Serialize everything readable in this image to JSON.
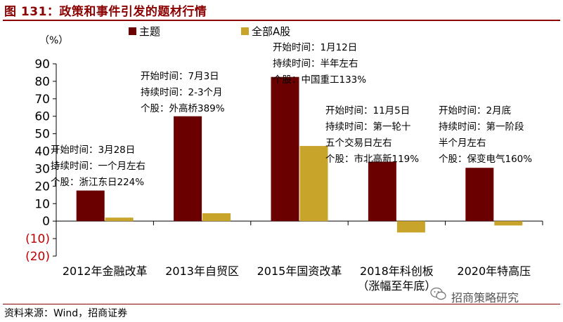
{
  "figure_title": "图 131：政策和事件引发的题材行情",
  "source_note": "资料来源：Wind，招商证券",
  "watermark": "招商策略研究",
  "colors": {
    "theme": "#6B0000",
    "market": "#C8A42A",
    "negative_tick": "#C00000",
    "title": "#8B0000"
  },
  "chart_data": {
    "type": "bar",
    "unit_label": "（%）",
    "categories": [
      [
        "2012年金融改革"
      ],
      [
        "2013年自贸区"
      ],
      [
        "2015年国资改革"
      ],
      [
        "2018年科创板",
        "（涨幅至年底）"
      ],
      [
        "2020年特高压"
      ]
    ],
    "series": [
      {
        "name": "主题",
        "values": [
          17.5,
          60,
          82.5,
          34,
          30.5
        ]
      },
      {
        "name": "全部A股",
        "values": [
          2,
          4.5,
          43,
          -6.5,
          -2.5
        ]
      }
    ],
    "ylim": [
      -20,
      90
    ],
    "yticks": [
      "(20)",
      "(10)",
      "0",
      "10",
      "20",
      "30",
      "40",
      "50",
      "60",
      "70",
      "80",
      "90"
    ],
    "legend_position": "top",
    "grid": false,
    "annotations": [
      [
        "开始时间：3月28日",
        "持续时间：一个月左右",
        "个股：浙江东日224%"
      ],
      [
        "开始时间：7月3日",
        "持续时间：2-3个月",
        "个股：外高桥389%"
      ],
      [
        "开始时间：1月12日",
        "持续时间：半年左右",
        "个股：中国重工133%"
      ],
      [
        "开始时间：11月5日",
        "持续时间：第一轮十",
        "五个交易日左右",
        "个股：市北高新119%"
      ],
      [
        "开始时间：2月底",
        "持续时间：第一阶段",
        "半个月左右",
        "个股：保变电气160%"
      ]
    ]
  }
}
